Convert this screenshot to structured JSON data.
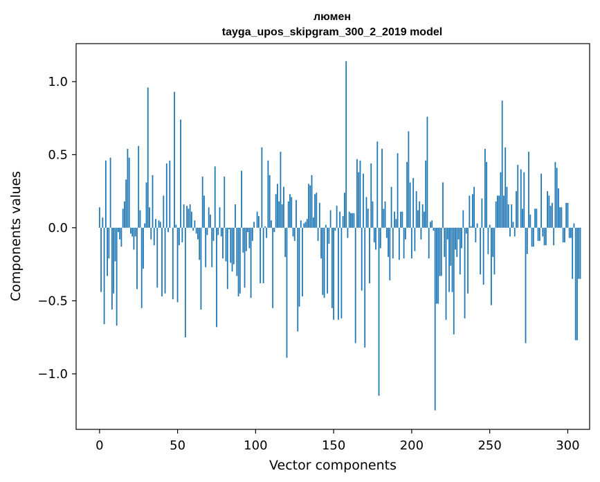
{
  "chart_data": {
    "type": "bar",
    "title": "люмен",
    "subtitle": "tayga_upos_skipgram_300_2_2019 model",
    "xlabel": "Vector components",
    "ylabel": "Components values",
    "xlim": [
      -15,
      314
    ],
    "ylim": [
      -1.38,
      1.26
    ],
    "xticks": [
      0,
      50,
      100,
      150,
      200,
      250,
      300
    ],
    "xtick_labels": [
      "0",
      "50",
      "100",
      "150",
      "200",
      "250",
      "300"
    ],
    "yticks": [
      -1.0,
      -0.5,
      0.0,
      0.5,
      1.0
    ],
    "ytick_labels": [
      "−1.0",
      "−0.5",
      "0.0",
      "0.5",
      "1.0"
    ],
    "grid": false,
    "bar_color": "#1f77b4",
    "values": [
      0.14,
      -0.44,
      0.07,
      -0.66,
      0.46,
      -0.33,
      -0.21,
      0.48,
      -0.56,
      -0.45,
      -0.23,
      -0.67,
      -0.03,
      -0.08,
      -0.13,
      0.13,
      0.18,
      0.33,
      0.54,
      0.48,
      -0.04,
      -0.06,
      -0.15,
      -0.06,
      -0.42,
      0.56,
      0.12,
      -0.55,
      -0.28,
      0.03,
      0.31,
      0.96,
      0.14,
      -0.08,
      0.36,
      -0.12,
      0.06,
      -0.41,
      0.05,
      0.04,
      -0.47,
      0.22,
      -0.45,
      0.44,
      -0.03,
      0.46,
      0.0,
      -0.49,
      0.93,
      0.02,
      -0.51,
      -0.12,
      0.74,
      -0.1,
      0.16,
      -0.75,
      0.15,
      0.13,
      0.16,
      0.11,
      -0.02,
      0.05,
      -0.04,
      -0.08,
      -0.22,
      -0.56,
      0.35,
      0.22,
      -0.27,
      -0.05,
      0.14,
      0.09,
      -0.27,
      -0.09,
      0.42,
      -0.68,
      -0.05,
      0.14,
      -0.06,
      -0.21,
      0.35,
      -0.23,
      -0.42,
      -0.01,
      -0.24,
      -0.3,
      -0.25,
      0.16,
      -0.33,
      -0.47,
      -0.45,
      0.39,
      -0.17,
      -0.41,
      -0.16,
      -0.03,
      -0.14,
      -0.48,
      -0.09,
      0.04,
      0.0,
      0.11,
      0.08,
      -0.38,
      0.55,
      -0.38,
      0.01,
      -0.07,
      0.46,
      0.36,
      0.05,
      -0.55,
      -0.03,
      0.23,
      0.3,
      0.18,
      0.52,
      0.16,
      0.28,
      -0.2,
      -0.89,
      0.18,
      0.23,
      0.21,
      -0.06,
      -0.09,
      0.19,
      -0.71,
      -0.54,
      0.05,
      -0.47,
      0.03,
      0.04,
      0.06,
      0.3,
      0.29,
      0.36,
      0.07,
      0.23,
      0.24,
      -0.09,
      0.17,
      -0.21,
      -0.46,
      -0.48,
      0.02,
      -0.45,
      -0.11,
      0.12,
      -0.55,
      -0.63,
      -0.02,
      0.15,
      -0.63,
      0.11,
      -0.62,
      0.08,
      0.24,
      1.14,
      -0.07,
      0.11,
      0.1,
      0.1,
      0.1,
      -0.79,
      0.47,
      0.38,
      0.46,
      -0.43,
      0.37,
      -0.82,
      0.21,
      0.13,
      -0.38,
      0.44,
      0.18,
      -0.1,
      -0.15,
      0.59,
      -1.15,
      -0.14,
      0.54,
      0.13,
      0.18,
      -0.07,
      -0.2,
      -0.36,
      0.28,
      -0.21,
      0.11,
      0.06,
      0.51,
      -0.22,
      0.11,
      0.11,
      -0.21,
      -0.08,
      0.45,
      0.66,
      0.31,
      -0.21,
      0.34,
      -0.16,
      0.25,
      0.12,
      0.18,
      -0.08,
      0.16,
      0.11,
      0.46,
      0.76,
      -0.21,
      0.04,
      0.05,
      -0.02,
      -1.25,
      -0.52,
      -0.52,
      -0.33,
      -0.33,
      0.31,
      -0.2,
      -0.63,
      -0.08,
      -0.44,
      -0.26,
      -0.44,
      -0.73,
      -0.15,
      -0.2,
      -0.08,
      -0.32,
      -0.14,
      0.12,
      -0.62,
      -0.04,
      -0.45,
      0.22,
      0.01,
      0.23,
      0.28,
      -0.1,
      0.03,
      0.0,
      -0.32,
      0.2,
      -0.39,
      0.54,
      0.45,
      -0.18,
      0.02,
      -0.53,
      -0.2,
      -0.32,
      0.18,
      0.22,
      0.22,
      0.38,
      0.87,
      0.22,
      0.55,
      0.28,
      0.16,
      -0.06,
      0.16,
      0.04,
      -0.06,
      0.25,
      0.43,
      0.0,
      0.4,
      0.13,
      0.38,
      -0.79,
      -0.18,
      0.52,
      0.09,
      -0.13,
      -0.13,
      0.13,
      0.13,
      -0.09,
      -0.09,
      0.37,
      -0.06,
      -0.12,
      -0.12,
      0.25,
      0.22,
      0.15,
      0.17,
      -0.12,
      0.45,
      0.41,
      0.27,
      0.14,
      0.14,
      -0.1,
      -0.1,
      0.17,
      0.17,
      -0.07,
      -0.07,
      -0.35,
      0.03,
      -0.77,
      -0.77,
      -0.35,
      -0.35,
      0.0
    ]
  }
}
